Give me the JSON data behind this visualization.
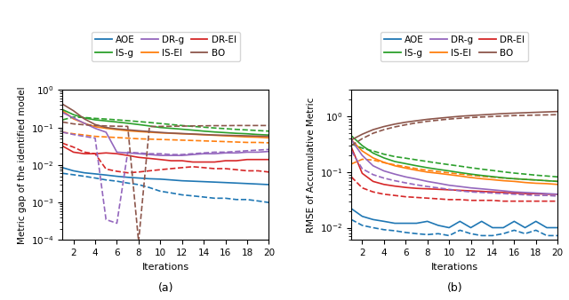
{
  "colors": {
    "AOE": "#1f77b4",
    "IS-EI": "#ff7f0e",
    "IS-g": "#2ca02c",
    "DR-EI": "#d62728",
    "DR-g": "#9467bd",
    "BO": "#8c564b"
  },
  "xlabel": "Iterations",
  "ylabel_a": "Metric gap of the identified model",
  "ylabel_b": "RMSE of Accumulative Metric",
  "label_a": "(a)",
  "label_b": "(b)",
  "x": [
    1,
    2,
    3,
    4,
    5,
    6,
    7,
    8,
    9,
    10,
    11,
    12,
    13,
    14,
    15,
    16,
    17,
    18,
    19,
    20
  ],
  "panel_a": {
    "ylim": [
      0.0001,
      1.0
    ],
    "AOE_solid": [
      0.0085,
      0.007,
      0.0062,
      0.0058,
      0.0054,
      0.005,
      0.0047,
      0.0045,
      0.0043,
      0.0042,
      0.004,
      0.0038,
      0.0037,
      0.0036,
      0.0035,
      0.0034,
      0.0033,
      0.0032,
      0.0031,
      0.003
    ],
    "AOE_dashed": [
      0.006,
      0.0055,
      0.005,
      0.0045,
      0.004,
      0.0037,
      0.0033,
      0.003,
      0.0025,
      0.002,
      0.0018,
      0.0016,
      0.0015,
      0.0014,
      0.0013,
      0.0013,
      0.0012,
      0.0012,
      0.0011,
      0.001
    ],
    "IS_EI_solid": [
      0.28,
      0.17,
      0.13,
      0.105,
      0.095,
      0.088,
      0.082,
      0.078,
      0.075,
      0.072,
      0.07,
      0.068,
      0.066,
      0.064,
      0.062,
      0.06,
      0.058,
      0.056,
      0.055,
      0.053
    ],
    "IS_EI_dashed": [
      0.075,
      0.068,
      0.063,
      0.058,
      0.056,
      0.054,
      0.052,
      0.05,
      0.049,
      0.048,
      0.047,
      0.046,
      0.045,
      0.044,
      0.043,
      0.042,
      0.041,
      0.04,
      0.04,
      0.039
    ],
    "IS_g_solid": [
      0.3,
      0.22,
      0.18,
      0.16,
      0.15,
      0.14,
      0.13,
      0.12,
      0.11,
      0.1,
      0.095,
      0.09,
      0.085,
      0.08,
      0.076,
      0.073,
      0.07,
      0.068,
      0.065,
      0.063
    ],
    "IS_g_dashed": [
      0.16,
      0.19,
      0.185,
      0.175,
      0.168,
      0.16,
      0.152,
      0.144,
      0.136,
      0.128,
      0.12,
      0.113,
      0.107,
      0.102,
      0.097,
      0.093,
      0.089,
      0.086,
      0.083,
      0.08
    ],
    "DR_EI_solid": [
      0.032,
      0.022,
      0.02,
      0.02,
      0.021,
      0.02,
      0.018,
      0.016,
      0.015,
      0.014,
      0.013,
      0.013,
      0.012,
      0.012,
      0.012,
      0.013,
      0.013,
      0.014,
      0.014,
      0.014
    ],
    "DR_EI_dashed": [
      0.038,
      0.03,
      0.022,
      0.02,
      0.0078,
      0.0068,
      0.0062,
      0.0065,
      0.007,
      0.0075,
      0.008,
      0.0085,
      0.009,
      0.0085,
      0.008,
      0.008,
      0.0075,
      0.007,
      0.007,
      0.0065
    ],
    "DR_g_solid": [
      0.25,
      0.18,
      0.13,
      0.095,
      0.075,
      0.022,
      0.021,
      0.02,
      0.019,
      0.018,
      0.018,
      0.018,
      0.019,
      0.02,
      0.02,
      0.021,
      0.021,
      0.022,
      0.022,
      0.023
    ],
    "DR_g_dashed": [
      0.075,
      0.065,
      0.058,
      0.052,
      0.00035,
      0.00028,
      0.022,
      0.021,
      0.02,
      0.02,
      0.019,
      0.019,
      0.02,
      0.021,
      0.022,
      0.022,
      0.023,
      0.024,
      0.025,
      0.026
    ],
    "BO_solid": [
      0.42,
      0.28,
      0.17,
      0.12,
      0.1,
      0.092,
      0.087,
      0.082,
      0.078,
      0.074,
      0.071,
      0.069,
      0.067,
      0.065,
      0.063,
      0.062,
      0.061,
      0.06,
      0.059,
      0.058
    ],
    "BO_dashed": [
      0.14,
      0.125,
      0.118,
      0.113,
      0.11,
      0.108,
      0.107,
      9e-05,
      0.106,
      0.107,
      0.108,
      0.109,
      0.11,
      0.111,
      0.112,
      0.112,
      0.113,
      0.113,
      0.113,
      0.113
    ]
  },
  "panel_b": {
    "ylim": [
      0.006,
      3.0
    ],
    "AOE_solid": [
      0.022,
      0.016,
      0.014,
      0.013,
      0.012,
      0.012,
      0.012,
      0.013,
      0.011,
      0.01,
      0.013,
      0.01,
      0.013,
      0.01,
      0.01,
      0.013,
      0.01,
      0.013,
      0.01,
      0.01
    ],
    "AOE_dashed": [
      0.014,
      0.011,
      0.01,
      0.0092,
      0.0088,
      0.0082,
      0.0078,
      0.0075,
      0.0078,
      0.0072,
      0.009,
      0.0078,
      0.0072,
      0.0072,
      0.0078,
      0.009,
      0.0078,
      0.009,
      0.0072,
      0.0072
    ],
    "IS_EI_solid": [
      0.38,
      0.24,
      0.18,
      0.15,
      0.13,
      0.118,
      0.108,
      0.1,
      0.095,
      0.09,
      0.085,
      0.08,
      0.076,
      0.073,
      0.07,
      0.068,
      0.065,
      0.063,
      0.062,
      0.06
    ],
    "IS_EI_dashed": [
      0.14,
      0.17,
      0.165,
      0.148,
      0.135,
      0.125,
      0.115,
      0.108,
      0.102,
      0.097,
      0.092,
      0.088,
      0.084,
      0.081,
      0.078,
      0.076,
      0.074,
      0.072,
      0.07,
      0.068
    ],
    "IS_g_solid": [
      0.45,
      0.3,
      0.22,
      0.18,
      0.155,
      0.142,
      0.13,
      0.12,
      0.112,
      0.105,
      0.098,
      0.092,
      0.087,
      0.083,
      0.079,
      0.076,
      0.074,
      0.072,
      0.07,
      0.068
    ],
    "IS_g_dashed": [
      0.32,
      0.27,
      0.24,
      0.21,
      0.19,
      0.178,
      0.166,
      0.155,
      0.145,
      0.136,
      0.128,
      0.12,
      0.113,
      0.107,
      0.101,
      0.096,
      0.092,
      0.088,
      0.085,
      0.082
    ],
    "DR_EI_solid": [
      0.28,
      0.095,
      0.068,
      0.06,
      0.056,
      0.053,
      0.051,
      0.05,
      0.049,
      0.048,
      0.047,
      0.046,
      0.045,
      0.044,
      0.043,
      0.042,
      0.041,
      0.041,
      0.04,
      0.04
    ],
    "DR_EI_dashed": [
      0.082,
      0.052,
      0.044,
      0.04,
      0.038,
      0.036,
      0.035,
      0.034,
      0.033,
      0.032,
      0.032,
      0.031,
      0.031,
      0.031,
      0.03,
      0.03,
      0.03,
      0.03,
      0.03,
      0.03
    ],
    "DR_g_solid": [
      0.38,
      0.2,
      0.13,
      0.105,
      0.092,
      0.082,
      0.075,
      0.068,
      0.063,
      0.058,
      0.055,
      0.052,
      0.05,
      0.048,
      0.046,
      0.044,
      0.043,
      0.042,
      0.041,
      0.04
    ],
    "DR_g_dashed": [
      0.24,
      0.115,
      0.09,
      0.078,
      0.07,
      0.064,
      0.059,
      0.055,
      0.052,
      0.049,
      0.046,
      0.044,
      0.043,
      0.042,
      0.041,
      0.04,
      0.039,
      0.038,
      0.038,
      0.037
    ],
    "BO_solid": [
      0.38,
      0.48,
      0.58,
      0.66,
      0.73,
      0.79,
      0.84,
      0.89,
      0.93,
      0.97,
      1.01,
      1.04,
      1.07,
      1.1,
      1.13,
      1.15,
      1.17,
      1.19,
      1.21,
      1.23
    ],
    "BO_dashed": [
      0.3,
      0.4,
      0.5,
      0.58,
      0.65,
      0.71,
      0.77,
      0.82,
      0.86,
      0.9,
      0.93,
      0.96,
      0.98,
      1.0,
      1.02,
      1.04,
      1.05,
      1.06,
      1.07,
      1.08
    ]
  }
}
